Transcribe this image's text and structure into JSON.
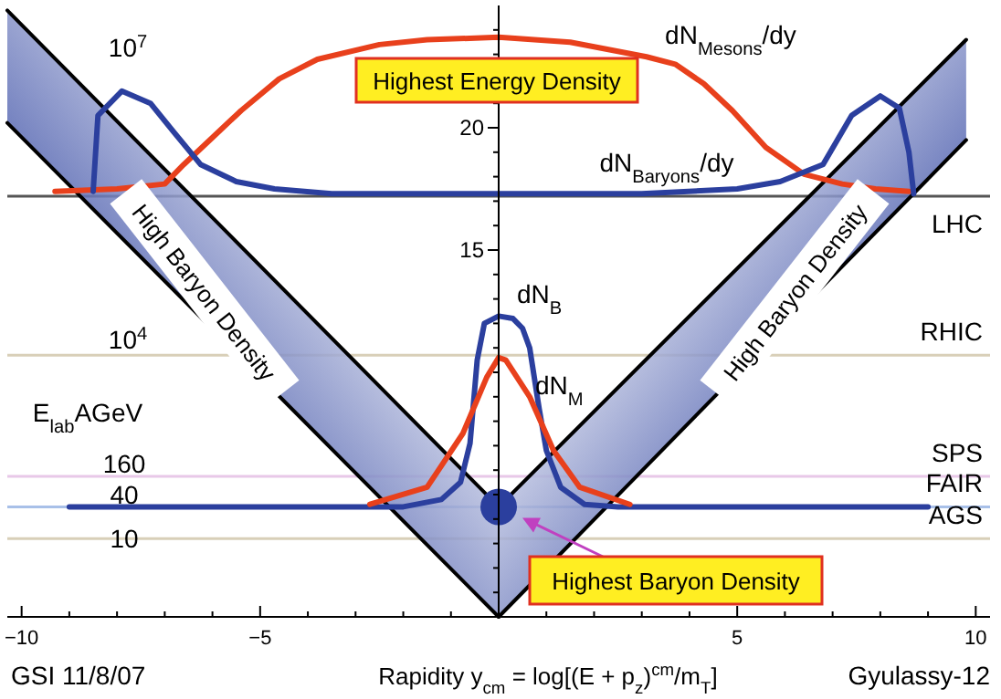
{
  "chart_data": {
    "type": "line",
    "xlabel": "Rapidity y$_{cm}$ = log[(E + p$_{z}$)$^{cm}$/m$_{T}$]",
    "xlim": [
      -10.3,
      10.3
    ],
    "ylim": [
      0,
      25
    ],
    "xticks": [
      -10,
      {
        "value": -9,
        "label": null
      },
      {
        "value": -8,
        "label": null
      },
      {
        "value": -7,
        "label": null
      },
      {
        "value": -6,
        "label": null
      },
      -5,
      {
        "value": -4,
        "label": null
      },
      {
        "value": -3,
        "label": null
      },
      {
        "value": -2,
        "label": null
      },
      {
        "value": -1,
        "label": null
      },
      {
        "value": 0,
        "label": null
      },
      {
        "value": 1,
        "label": null
      },
      {
        "value": 2,
        "label": null
      },
      {
        "value": 3,
        "label": null
      },
      {
        "value": 4,
        "label": null
      },
      5,
      {
        "value": 6,
        "label": null
      },
      {
        "value": 7,
        "label": null
      },
      {
        "value": 8,
        "label": null
      },
      {
        "value": 9,
        "label": null
      },
      10
    ],
    "yticks": [
      {
        "value": 1,
        "label": null
      },
      {
        "value": 2,
        "label": null
      },
      {
        "value": 3,
        "label": null
      },
      {
        "value": 4,
        "label": null
      },
      {
        "value": 5,
        "label": null
      },
      {
        "value": 6,
        "label": null
      },
      {
        "value": 7,
        "label": null
      },
      {
        "value": 8,
        "label": null
      },
      {
        "value": 9,
        "label": null
      },
      {
        "value": 10,
        "label": null
      },
      {
        "value": 11,
        "label": null
      },
      {
        "value": 12,
        "label": null
      },
      {
        "value": 13,
        "label": null
      },
      {
        "value": 14,
        "label": null
      },
      15,
      {
        "value": 16,
        "label": null
      },
      {
        "value": 17,
        "label": null
      },
      {
        "value": 18,
        "label": null
      },
      {
        "value": 19,
        "label": null
      },
      20,
      {
        "value": 21,
        "label": null
      },
      {
        "value": 22,
        "label": null
      },
      {
        "value": 23,
        "label": null
      },
      {
        "value": 24,
        "label": null
      }
    ],
    "series": [
      {
        "color": "#000000",
        "x": [
          -10.3,
          0
        ],
        "values": [
          20.2,
          0
        ],
        "lower": [
          20.2,
          0
        ],
        "upper": [
          24.8,
          4.5
        ]
      },
      {
        "color": "#000000",
        "x": [
          -10.3,
          0
        ],
        "values": [
          24.8,
          4.5
        ]
      },
      {
        "color": "#000000",
        "x": [
          0,
          9.8
        ],
        "values": [
          0,
          19.5
        ],
        "lower": [
          0,
          19.5
        ],
        "upper": [
          4.5,
          23.6
        ]
      },
      {
        "color": "#000000",
        "x": [
          0,
          9.8
        ],
        "values": [
          4.5,
          23.6
        ]
      },
      {
        "color": "#e8401c",
        "x": [
          -9.3,
          -8,
          -7,
          -6.6,
          -6,
          -5.4,
          -4.6,
          -3.8,
          -2.5,
          -1.5,
          0,
          1.5,
          3.1,
          3.7,
          4.3,
          4.9,
          5.6,
          6.4,
          7.2,
          7.9,
          8.6
        ],
        "values": [
          17.4,
          17.5,
          17.7,
          18.5,
          19.6,
          20.7,
          22,
          22.8,
          23.4,
          23.6,
          23.7,
          23.5,
          22.9,
          22.6,
          21.8,
          20.7,
          19.2,
          18.1,
          17.7,
          17.5,
          17.4
        ]
      },
      {
        "color": "#2b3f9e",
        "x": [
          -8.5,
          -8.4,
          -7.9,
          -7.3,
          -6.8,
          -6.25,
          -5.5,
          -4.7,
          -3.5,
          0,
          3,
          5,
          5.9,
          6.8,
          7.4,
          8,
          8.4,
          8.6,
          8.7
        ],
        "values": [
          17.4,
          20.5,
          21.5,
          21,
          19.8,
          18.5,
          17.8,
          17.5,
          17.3,
          17.3,
          17.3,
          17.5,
          17.8,
          18.5,
          20.5,
          21.3,
          20.8,
          19,
          17.3
        ]
      },
      {
        "color": "#2b3f9e",
        "x": [
          -9,
          -2,
          -1.2,
          -0.8,
          -0.6,
          -0.45,
          -0.3,
          0,
          0.3,
          0.5,
          0.65,
          0.85,
          1,
          1.3,
          1.8,
          2.5,
          9
        ],
        "values": [
          4.5,
          4.5,
          4.8,
          5.5,
          7.1,
          10.5,
          12,
          12.3,
          12.2,
          11.8,
          11,
          8.5,
          6.8,
          5.3,
          4.6,
          4.5,
          4.5
        ]
      },
      {
        "color": "#e8401c",
        "x": [
          -2.7,
          -1.5,
          -0.75,
          -0.25,
          0,
          0.15,
          0.65,
          1.15,
          1.7,
          2.75
        ],
        "values": [
          4.6,
          5.3,
          7.5,
          9.8,
          10.6,
          10.5,
          9,
          6.8,
          5.3,
          4.6
        ]
      },
      {
        "type": "scatter",
        "marker": "circle",
        "color": "#2b3f9e",
        "x": [
          0
        ],
        "values": [
          4.5
        ]
      }
    ],
    "ref_lines": [
      {
        "axis": "y",
        "value": 17.2,
        "label": "LHC",
        "color": "#555555"
      },
      {
        "axis": "y",
        "value": 10.7,
        "label": "RHIC",
        "color": "#d8cfb8"
      },
      {
        "axis": "y",
        "value": 5.75,
        "label": "SPS",
        "color": "#e8c8e8"
      },
      {
        "axis": "y",
        "value": 4.5,
        "label": "FAIR",
        "color": "#a8c0e8"
      },
      {
        "axis": "y",
        "value": 3.2,
        "label": "AGS",
        "color": "#d8cfb8"
      }
    ],
    "annotations": [
      "Highest Energy Density",
      "Highest Baryon Density",
      "High Baryon Density",
      "High Baryon Density",
      "dN$_{Mesons}$/dy",
      "dN$_{Baryons}$/dy",
      "dN$_{B}$",
      "dN$_{M}$",
      "10$^{7}$",
      "10$^{4}$",
      "E$_{lab}$AGeV",
      "160",
      "40",
      "10",
      "GSI 11/8/07",
      "Gyulassy-12"
    ]
  }
}
